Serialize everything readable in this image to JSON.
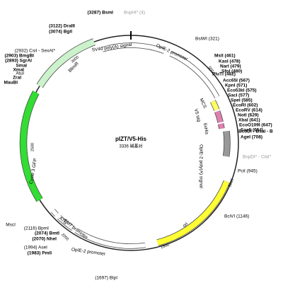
{
  "map": {
    "name": "pIZT/V5-His",
    "size": "3336 碱基对",
    "features": [
      "SV40 poly(A) signal",
      "OpIE-2 promoter",
      "MCS",
      "V5 tag",
      "6xHis",
      "OpIE-2 poly(A) signal",
      "ori",
      "OpIE-2 promoter",
      "EM7 promoter",
      "ATG",
      "Cycle 3 GFP",
      "BleoR"
    ],
    "ticks": [
      "500",
      "1000",
      "1500",
      "2000",
      "2500",
      "3000"
    ],
    "sites": [
      "(3287) BsmI",
      "BspHI* (4)",
      "(3122) DraIII",
      "(3074) BglI",
      "BsiWI (321)",
      "MslI (461)",
      "KasI (478)",
      "NarI (479)",
      "SfoI (480)",
      "PluTI (482)",
      "Acc65I (567)",
      "KpnI (571)",
      "Eco53kI (575)",
      "SacI (577)",
      "SpeI (585)",
      "EcoRI (602)",
      "EcoRV (614)",
      "NotI (629)",
      "XbaI (641)",
      "EcoO109I (647)",
      "SacII (654)",
      "BcoDI - BsaI - B",
      "AgeI (708)",
      "BspDI* - ClaI*",
      "PciI (945)",
      "BciVI (1146)",
      "(1697) BlpI",
      "(2116) BpmI",
      "(2074) BmtI",
      "(2070) NheI",
      "(1994) AseI",
      "(1983) PmlI",
      "(2932) CsiI - SexAI*",
      "(2903) BmgBI",
      "(2893) SgrAI",
      "SmaI",
      "XmaI",
      "AtuI",
      "ZraI",
      "MauBI",
      "MscI"
    ]
  }
}
